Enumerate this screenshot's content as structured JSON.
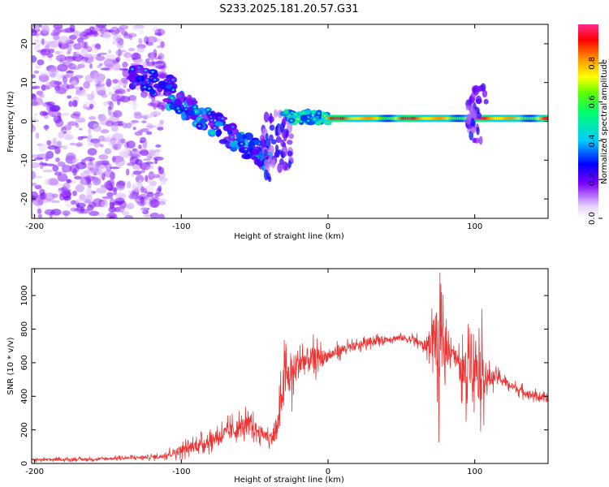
{
  "title": "S233.2025.181.20.57.G31",
  "colors": {
    "snr_line": "#ee3333",
    "axis": "#000000",
    "background": "#ffffff"
  },
  "chart_data": [
    {
      "type": "heatmap",
      "xlabel": "Height of straight line (km)",
      "ylabel": "Frequency (Hz)",
      "xlim": [
        -202,
        150
      ],
      "ylim": [
        -25,
        25
      ],
      "xticks": [
        -200,
        -100,
        0,
        100
      ],
      "yticks": [
        -20,
        -10,
        0,
        10,
        20
      ],
      "grid": false,
      "colorbar": {
        "label": "Normalized spectral amplitude",
        "range": [
          0,
          1
        ],
        "ticks": [
          "0.0",
          "0.2",
          "0.4",
          "0.6",
          "0.8"
        ],
        "tick_values": [
          0,
          0.2,
          0.4,
          0.6,
          0.8
        ],
        "colormap": "rainbow (white-violet-blue-cyan-green-yellow-red-pink)"
      },
      "regions": [
        {
          "x": [
            -202,
            -112
          ],
          "freq": [
            -25,
            25
          ],
          "amplitude": [
            0.05,
            0.2
          ],
          "pattern": "scattered noise"
        },
        {
          "x": [
            -135,
            -105
          ],
          "freq": [
            8,
            12
          ],
          "amplitude": [
            0.15,
            0.3
          ],
          "pattern": "descending band"
        },
        {
          "x": [
            -110,
            -40
          ],
          "freq": [
            -10,
            7
          ],
          "amplitude": [
            0.15,
            0.4
          ],
          "pattern": "descending blobs"
        },
        {
          "x": [
            -45,
            -25
          ],
          "freq": [
            -15,
            3
          ],
          "amplitude": [
            0.1,
            0.3
          ],
          "pattern": "downward streaks"
        },
        {
          "x": [
            -30,
            0
          ],
          "freq": [
            -1,
            3
          ],
          "amplitude": [
            0.3,
            0.5
          ],
          "pattern": "band"
        },
        {
          "x": [
            0,
            150
          ],
          "freq": [
            0,
            1.5
          ],
          "amplitude": [
            0.5,
            1.0
          ],
          "pattern": "steady tone near 0.8 Hz"
        },
        {
          "x": [
            95,
            108
          ],
          "freq": [
            -5,
            9
          ],
          "amplitude": [
            0.1,
            0.3
          ],
          "pattern": "vertical streak"
        }
      ]
    },
    {
      "type": "line",
      "xlabel": "Height of straight line (km)",
      "ylabel": "SNR (10 * v/v)",
      "xlim": [
        -202,
        150
      ],
      "ylim": [
        0,
        1160
      ],
      "xticks": [
        -200,
        -100,
        0,
        100
      ],
      "yticks": [
        0,
        200,
        400,
        600,
        800,
        1000
      ],
      "grid": false,
      "series": [
        {
          "x": [
            -202,
            -160,
            -130,
            -115,
            -100,
            -85,
            -70,
            -60,
            -55,
            -45,
            -40,
            -35,
            -30,
            -25,
            -20,
            -10,
            0,
            10,
            20,
            30,
            40,
            50,
            60,
            65,
            70,
            73,
            75,
            77,
            80,
            85,
            90,
            94,
            96,
            100,
            104,
            106,
            108,
            115,
            125,
            135,
            150
          ],
          "y": [
            22,
            25,
            35,
            40,
            80,
            120,
            180,
            210,
            230,
            180,
            150,
            180,
            500,
            520,
            600,
            620,
            640,
            680,
            700,
            730,
            740,
            750,
            730,
            700,
            720,
            780,
            600,
            700,
            680,
            680,
            560,
            520,
            700,
            600,
            540,
            560,
            500,
            520,
            460,
            420,
            380
          ],
          "spread": [
            15,
            15,
            20,
            25,
            60,
            80,
            100,
            120,
            120,
            80,
            70,
            150,
            250,
            250,
            200,
            150,
            70,
            60,
            50,
            50,
            40,
            40,
            50,
            60,
            150,
            400,
            550,
            450,
            200,
            100,
            150,
            350,
            450,
            400,
            400,
            350,
            150,
            60,
            50,
            50,
            40
          ]
        }
      ]
    }
  ]
}
